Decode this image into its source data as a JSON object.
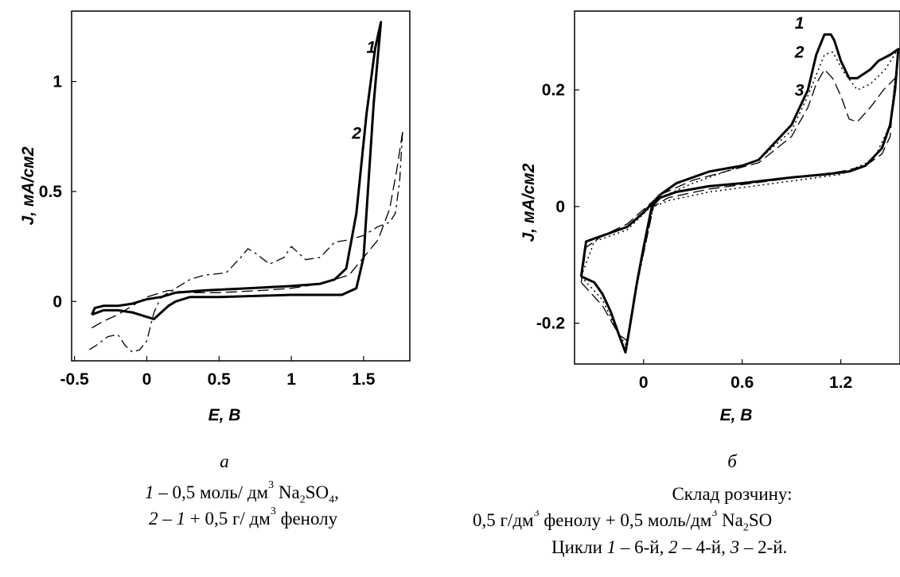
{
  "chart_data": [
    {
      "id": "a",
      "type": "line",
      "xlabel": "E, B",
      "ylabel": "J, мА/см2",
      "xlim": [
        -0.52,
        1.82
      ],
      "ylim": [
        -0.27,
        1.32
      ],
      "xticks": [
        -0.5,
        0,
        0.5,
        1,
        1.5
      ],
      "xtick_labels": [
        "-0.5",
        "0",
        "0.5",
        "1",
        "1.5"
      ],
      "yticks": [
        0,
        0.5,
        1
      ],
      "ytick_labels": [
        "0",
        "0.5",
        "1"
      ],
      "curve_labels": [
        {
          "text": "1",
          "x": 1.52,
          "y": 1.13
        },
        {
          "text": "2",
          "x": 1.42,
          "y": 0.74
        }
      ],
      "series": [
        {
          "label": "1",
          "style": "solid",
          "points": [
            [
              -0.38,
              -0.06
            ],
            [
              -0.36,
              -0.03
            ],
            [
              -0.3,
              -0.02
            ],
            [
              -0.2,
              -0.02
            ],
            [
              -0.1,
              -0.01
            ],
            [
              0,
              0.01
            ],
            [
              0.1,
              0.02
            ],
            [
              0.2,
              0.04
            ],
            [
              0.4,
              0.05
            ],
            [
              0.7,
              0.06
            ],
            [
              1.0,
              0.07
            ],
            [
              1.2,
              0.08
            ],
            [
              1.3,
              0.1
            ],
            [
              1.38,
              0.15
            ],
            [
              1.45,
              0.4
            ],
            [
              1.52,
              0.85
            ],
            [
              1.58,
              1.15
            ],
            [
              1.62,
              1.27
            ],
            [
              1.57,
              0.9
            ],
            [
              1.53,
              0.5
            ],
            [
              1.5,
              0.2
            ],
            [
              1.45,
              0.06
            ],
            [
              1.35,
              0.03
            ],
            [
              1.0,
              0.03
            ],
            [
              0.5,
              0.02
            ],
            [
              0.3,
              0.02
            ],
            [
              0.2,
              0.0
            ],
            [
              0.15,
              -0.02
            ],
            [
              0.1,
              -0.05
            ],
            [
              0.05,
              -0.08
            ],
            [
              0.0,
              -0.07
            ],
            [
              -0.1,
              -0.05
            ],
            [
              -0.2,
              -0.04
            ],
            [
              -0.3,
              -0.04
            ],
            [
              -0.38,
              -0.06
            ]
          ]
        },
        {
          "label": "2",
          "style": "dashed",
          "points": [
            [
              -0.38,
              -0.12
            ],
            [
              -0.3,
              -0.09
            ],
            [
              -0.2,
              -0.06
            ],
            [
              -0.1,
              -0.02
            ],
            [
              0.0,
              0.02
            ],
            [
              0.15,
              0.05
            ],
            [
              0.3,
              0.04
            ],
            [
              0.5,
              0.04
            ],
            [
              0.8,
              0.05
            ],
            [
              1.0,
              0.06
            ],
            [
              1.2,
              0.08
            ],
            [
              1.4,
              0.12
            ],
            [
              1.5,
              0.2
            ],
            [
              1.6,
              0.28
            ],
            [
              1.68,
              0.42
            ],
            [
              1.73,
              0.6
            ],
            [
              1.77,
              0.77
            ]
          ]
        },
        {
          "label": "2",
          "style": "dashdot",
          "points": [
            [
              1.77,
              0.77
            ],
            [
              1.75,
              0.55
            ],
            [
              1.72,
              0.4
            ],
            [
              1.68,
              0.36
            ],
            [
              1.6,
              0.34
            ],
            [
              1.5,
              0.3
            ],
            [
              1.4,
              0.28
            ],
            [
              1.3,
              0.27
            ],
            [
              1.2,
              0.2
            ],
            [
              1.1,
              0.19
            ],
            [
              1.0,
              0.25
            ],
            [
              0.95,
              0.2
            ],
            [
              0.85,
              0.17
            ],
            [
              0.75,
              0.22
            ],
            [
              0.7,
              0.24
            ],
            [
              0.65,
              0.2
            ],
            [
              0.55,
              0.13
            ],
            [
              0.4,
              0.12
            ],
            [
              0.3,
              0.1
            ],
            [
              0.2,
              0.06
            ],
            [
              0.1,
              0.02
            ],
            [
              0.05,
              -0.05
            ],
            [
              0.0,
              -0.18
            ],
            [
              -0.05,
              -0.22
            ],
            [
              -0.1,
              -0.23
            ],
            [
              -0.15,
              -0.2
            ],
            [
              -0.2,
              -0.15
            ],
            [
              -0.27,
              -0.16
            ],
            [
              -0.35,
              -0.2
            ],
            [
              -0.4,
              -0.22
            ]
          ]
        }
      ]
    },
    {
      "id": "б",
      "type": "line",
      "xlabel": "E, B",
      "ylabel": "J, мА/см2",
      "xlim": [
        -0.42,
        1.56
      ],
      "ylim": [
        -0.27,
        0.335
      ],
      "xticks": [
        0,
        0.6,
        1.2
      ],
      "xtick_labels": [
        "0",
        "0.6",
        "1.2"
      ],
      "yticks": [
        -0.2,
        0,
        0.2
      ],
      "ytick_labels": [
        "-0.2",
        "0",
        "0.2"
      ],
      "curve_labels": [
        {
          "text": "1",
          "x": 0.92,
          "y": 0.305
        },
        {
          "text": "2",
          "x": 0.92,
          "y": 0.255
        },
        {
          "text": "3",
          "x": 0.92,
          "y": 0.19
        }
      ],
      "series": [
        {
          "label": "1",
          "style": "solid",
          "points": [
            [
              -0.38,
              -0.12
            ],
            [
              -0.3,
              -0.13
            ],
            [
              -0.25,
              -0.15
            ],
            [
              -0.2,
              -0.18
            ],
            [
              -0.15,
              -0.22
            ],
            [
              -0.11,
              -0.25
            ],
            [
              -0.08,
              -0.2
            ],
            [
              -0.04,
              -0.13
            ],
            [
              0.0,
              -0.07
            ],
            [
              0.05,
              0.0
            ],
            [
              0.1,
              0.015
            ],
            [
              0.2,
              0.025
            ],
            [
              0.4,
              0.035
            ],
            [
              0.6,
              0.04
            ],
            [
              0.9,
              0.05
            ],
            [
              1.1,
              0.055
            ],
            [
              1.25,
              0.06
            ],
            [
              1.35,
              0.07
            ],
            [
              1.45,
              0.1
            ],
            [
              1.5,
              0.14
            ],
            [
              1.53,
              0.2
            ],
            [
              1.55,
              0.27
            ],
            [
              1.5,
              0.26
            ],
            [
              1.43,
              0.25
            ],
            [
              1.38,
              0.235
            ],
            [
              1.3,
              0.22
            ],
            [
              1.25,
              0.22
            ],
            [
              1.2,
              0.25
            ],
            [
              1.16,
              0.285
            ],
            [
              1.14,
              0.295
            ],
            [
              1.1,
              0.295
            ],
            [
              1.05,
              0.26
            ],
            [
              1.0,
              0.2
            ],
            [
              0.9,
              0.14
            ],
            [
              0.8,
              0.11
            ],
            [
              0.7,
              0.08
            ],
            [
              0.6,
              0.07
            ],
            [
              0.5,
              0.065
            ],
            [
              0.4,
              0.06
            ],
            [
              0.3,
              0.05
            ],
            [
              0.2,
              0.04
            ],
            [
              0.1,
              0.02
            ],
            [
              0.0,
              -0.01
            ],
            [
              -0.1,
              -0.035
            ],
            [
              -0.2,
              -0.045
            ],
            [
              -0.3,
              -0.055
            ],
            [
              -0.35,
              -0.06
            ],
            [
              -0.38,
              -0.12
            ]
          ]
        },
        {
          "label": "2",
          "style": "dotted",
          "points": [
            [
              -0.38,
              -0.12
            ],
            [
              -0.25,
              -0.16
            ],
            [
              -0.15,
              -0.22
            ],
            [
              -0.1,
              -0.24
            ],
            [
              -0.05,
              -0.15
            ],
            [
              0.0,
              -0.08
            ],
            [
              0.06,
              0.0
            ],
            [
              0.15,
              0.01
            ],
            [
              0.4,
              0.025
            ],
            [
              0.8,
              0.04
            ],
            [
              1.2,
              0.055
            ],
            [
              1.4,
              0.08
            ],
            [
              1.5,
              0.14
            ],
            [
              1.55,
              0.27
            ],
            [
              1.47,
              0.235
            ],
            [
              1.38,
              0.21
            ],
            [
              1.3,
              0.2
            ],
            [
              1.22,
              0.23
            ],
            [
              1.15,
              0.265
            ],
            [
              1.1,
              0.26
            ],
            [
              1.0,
              0.19
            ],
            [
              0.9,
              0.13
            ],
            [
              0.7,
              0.08
            ],
            [
              0.5,
              0.06
            ],
            [
              0.3,
              0.04
            ],
            [
              0.1,
              0.015
            ],
            [
              -0.1,
              -0.04
            ],
            [
              -0.3,
              -0.06
            ],
            [
              -0.38,
              -0.12
            ]
          ]
        },
        {
          "label": "3",
          "style": "dashed",
          "points": [
            [
              -0.38,
              -0.13
            ],
            [
              -0.25,
              -0.17
            ],
            [
              -0.15,
              -0.22
            ],
            [
              -0.1,
              -0.23
            ],
            [
              -0.05,
              -0.14
            ],
            [
              0.0,
              -0.08
            ],
            [
              0.06,
              0.0
            ],
            [
              0.15,
              0.015
            ],
            [
              0.4,
              0.03
            ],
            [
              0.8,
              0.045
            ],
            [
              1.2,
              0.06
            ],
            [
              1.35,
              0.07
            ],
            [
              1.45,
              0.09
            ],
            [
              1.5,
              0.12
            ],
            [
              1.53,
              0.22
            ],
            [
              1.46,
              0.2
            ],
            [
              1.38,
              0.17
            ],
            [
              1.3,
              0.145
            ],
            [
              1.25,
              0.15
            ],
            [
              1.2,
              0.19
            ],
            [
              1.15,
              0.22
            ],
            [
              1.1,
              0.235
            ],
            [
              1.05,
              0.21
            ],
            [
              1.0,
              0.17
            ],
            [
              0.9,
              0.12
            ],
            [
              0.7,
              0.075
            ],
            [
              0.5,
              0.06
            ],
            [
              0.3,
              0.045
            ],
            [
              0.1,
              0.02
            ],
            [
              -0.1,
              -0.03
            ],
            [
              -0.25,
              -0.05
            ],
            [
              -0.35,
              -0.07
            ],
            [
              -0.38,
              -0.13
            ]
          ]
        }
      ]
    }
  ],
  "captions": {
    "a": {
      "letter": "а",
      "line1": {
        "num": "1",
        "dash": " – 0,5 моль/ дм",
        "sup": "3",
        "mid": " Na",
        "sub1": "2",
        "so": "SO",
        "sub2": "4",
        "end": ","
      },
      "line2": {
        "num": "2",
        "dash": " – ",
        "num2": "1",
        "rest": " + 0,5 г/ дм",
        "sup": "3",
        "end": " фенолу"
      }
    },
    "b": {
      "letter": "б",
      "line1": "Склад розчину:",
      "line2": {
        "a": "0,5 г/дм",
        "sup1": "3",
        "b": " фенолу + 0,5 моль/дм",
        "sup2": "3",
        "c": " Na",
        "sub1": "2",
        "d": "SO"
      },
      "line3": {
        "a": "Цикли ",
        "n1": "1",
        "b": " – 6-й, ",
        "n2": "2",
        "c": " – 4-й, ",
        "n3": "3",
        "d": " – 2-й."
      }
    }
  }
}
